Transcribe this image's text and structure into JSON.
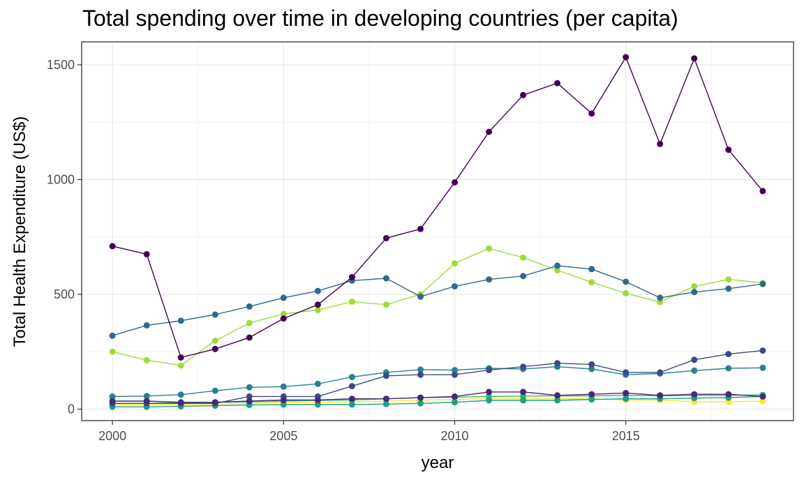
{
  "chart_data": {
    "type": "line",
    "title": "Total spending over time in developing countries (per capita)",
    "xlabel": "year",
    "ylabel": "Total Health Expenditure (US$)",
    "xlim": [
      1999.1,
      2019.9
    ],
    "ylim": [
      -50,
      1600
    ],
    "x_ticks": [
      2000,
      2005,
      2010,
      2015
    ],
    "y_ticks": [
      0,
      500,
      1000,
      1500
    ],
    "grid": true,
    "legend": "none",
    "x": [
      2000,
      2001,
      2002,
      2003,
      2004,
      2005,
      2006,
      2007,
      2008,
      2009,
      2010,
      2011,
      2012,
      2013,
      2014,
      2015,
      2016,
      2017,
      2018,
      2019
    ],
    "series": [
      {
        "color": "#440154",
        "values": [
          710,
          675,
          225,
          262,
          312,
          395,
          455,
          575,
          745,
          785,
          988,
          1208,
          1368,
          1420,
          1288,
          1533,
          1155,
          1528,
          1130,
          950
        ]
      },
      {
        "color": "#482878",
        "values": [
          35,
          35,
          30,
          30,
          35,
          40,
          40,
          45,
          45,
          50,
          55,
          75,
          75,
          60,
          65,
          70,
          60,
          65,
          65,
          55
        ]
      },
      {
        "color": "#3e4989",
        "values": [
          25,
          25,
          25,
          25,
          55,
          55,
          55,
          100,
          145,
          150,
          150,
          170,
          185,
          200,
          195,
          160,
          160,
          215,
          240,
          255
        ]
      },
      {
        "color": "#31688e",
        "values": [
          320,
          365,
          385,
          412,
          447,
          485,
          515,
          560,
          570,
          490,
          535,
          565,
          580,
          625,
          610,
          555,
          485,
          510,
          525,
          545
        ]
      },
      {
        "color": "#26828e",
        "values": [
          55,
          57,
          63,
          80,
          95,
          98,
          110,
          140,
          160,
          172,
          170,
          178,
          175,
          185,
          175,
          150,
          155,
          168,
          178,
          180
        ]
      },
      {
        "color": "#1f9e89",
        "values": [
          10,
          10,
          12,
          15,
          18,
          20,
          20,
          20,
          22,
          25,
          30,
          38,
          38,
          38,
          42,
          45,
          45,
          48,
          50,
          55
        ]
      },
      {
        "color": "#35b779",
        "values": [
          25,
          25,
          28,
          30,
          32,
          35,
          38,
          40,
          45,
          50,
          52,
          55,
          57,
          58,
          58,
          60,
          58,
          60,
          60,
          62
        ]
      },
      {
        "color": "#a0da39",
        "values": [
          250,
          213,
          190,
          298,
          375,
          415,
          432,
          468,
          455,
          500,
          635,
          700,
          660,
          605,
          553,
          505,
          467,
          535,
          565,
          550
        ]
      },
      {
        "color": "#fde725",
        "values": [
          20,
          20,
          20,
          22,
          25,
          30,
          30,
          32,
          35,
          40,
          42,
          45,
          45,
          45,
          45,
          40,
          40,
          32,
          32,
          35
        ]
      }
    ]
  }
}
